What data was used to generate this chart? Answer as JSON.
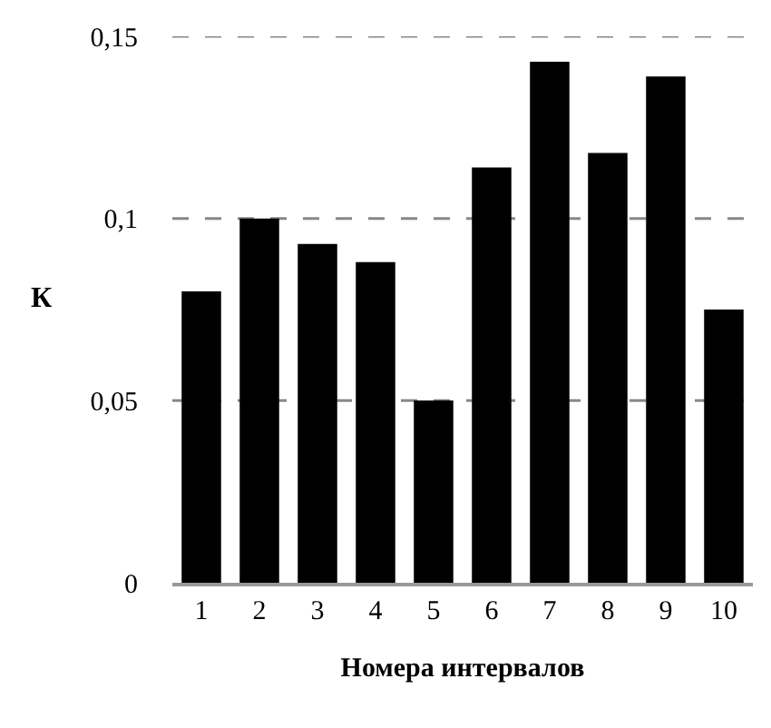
{
  "chart_data": {
    "type": "bar",
    "xlabel": "Номера интервалов",
    "ylabel": "К",
    "categories": [
      "1",
      "2",
      "3",
      "4",
      "5",
      "6",
      "7",
      "8",
      "9",
      "10"
    ],
    "values": [
      0.08,
      0.1,
      0.093,
      0.088,
      0.05,
      0.114,
      0.143,
      0.118,
      0.139,
      0.075
    ],
    "color": "#000000",
    "ylim": [
      0,
      0.15
    ],
    "yticks": [
      0,
      {
        "value": 0.05,
        "label": "0,05"
      },
      {
        "value": 0.1,
        "label": "0,1"
      },
      {
        "value": 0.15,
        "label": "0,15"
      }
    ],
    "grid": "y"
  }
}
